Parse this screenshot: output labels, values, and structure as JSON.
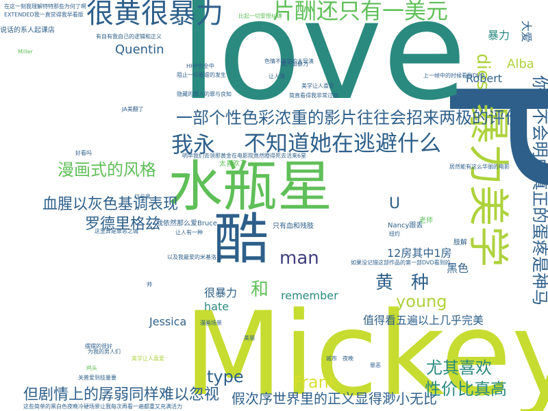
{
  "palette": {
    "navy": "#2e5f8a",
    "teal": "#2a8a7f",
    "green": "#5fbf58",
    "lime": "#aed23c",
    "yellow": "#d8df2c",
    "purple": "#3f3e7e"
  },
  "words": [
    {
      "text": "love",
      "color": "#2a8a7f"
    },
    {
      "text": "Mickey",
      "color": "#c6dc30"
    },
    {
      "text": "P",
      "color": "#2e5f8a"
    },
    {
      "text": "水瓶星",
      "color": "#5fbf58"
    },
    {
      "text": "酷",
      "color": "#2e5f8a"
    },
    {
      "text": "很黄很暴力",
      "color": "#2e5f8a"
    },
    {
      "text": "片酬还只有一美元",
      "color": "#5fbf58"
    },
    {
      "text": "暴力美学",
      "color": "#aed23c"
    },
    {
      "text": "一部个性色彩浓重的影片往往会招来两极的评价",
      "color": "#2e5f8a"
    },
    {
      "text": "不知道她在逃避什么",
      "color": "#2e5f8a"
    },
    {
      "text": "我永",
      "color": "#2e5f8a"
    },
    {
      "text": "漫画式的风格",
      "color": "#5fbf58"
    },
    {
      "text": "血腥以灰色基调表现",
      "color": "#2e5f8a"
    },
    {
      "text": "罗德里格兹",
      "color": "#2e5f8a"
    },
    {
      "text": "Quentin",
      "color": "#2e5f8a"
    },
    {
      "text": "dies",
      "color": "#aed23c"
    },
    {
      "text": "Alba",
      "color": "#aed23c"
    },
    {
      "text": "Robert",
      "color": "#2e5f8a"
    },
    {
      "text": "暴力",
      "color": "#2a8a7f"
    },
    {
      "text": "大爱",
      "color": "#2e5f8a"
    },
    {
      "text": "你就不会明白真正的蛋疼是神马",
      "color": "#2e5f8a"
    },
    {
      "text": "man",
      "color": "#3f3e7e"
    },
    {
      "text": "黄",
      "color": "#2e5f8a"
    },
    {
      "text": "种",
      "color": "#2e5f8a"
    },
    {
      "text": "和",
      "color": "#5fbf58"
    },
    {
      "text": "young",
      "color": "#aed23c"
    },
    {
      "text": "12房其中1房",
      "color": "#2e5f8a"
    },
    {
      "text": "黑色",
      "color": "#2e5f8a"
    },
    {
      "text": "值得看五遍以上几乎完美",
      "color": "#2e5f8a"
    },
    {
      "text": "很暴力",
      "color": "#2e5f8a"
    },
    {
      "text": "hate",
      "color": "#2a8a7f"
    },
    {
      "text": "remember",
      "color": "#2a8a7f"
    },
    {
      "text": "Jessica",
      "color": "#2e5f8a"
    },
    {
      "text": "type",
      "color": "#2e5f8a"
    },
    {
      "text": "Frank",
      "color": "#d8df2c"
    },
    {
      "text": "尤其喜欢",
      "color": "#2a8a7f"
    },
    {
      "text": "性价比真高",
      "color": "#2a8a7f"
    },
    {
      "text": "但剧情上的孱弱同样难以忽视",
      "color": "#2e5f8a"
    },
    {
      "text": "假次序世界里的正义显得渺小无比",
      "color": "#2e5f8a"
    },
    {
      "text": "U",
      "color": "#2e5f8a"
    },
    {
      "text": "只有血和残肢",
      "color": "#2e5f8a"
    },
    {
      "text": "我依然那么爱Bruce",
      "color": "#2e5f8a"
    },
    {
      "text": "Nancy跟丢",
      "color": "#2e5f8a"
    },
    {
      "text": "肢解",
      "color": "#2e5f8a"
    },
    {
      "text": "老师",
      "color": "#5fbf58"
    },
    {
      "text": "太喜欢了",
      "color": "#5fbf58"
    },
    {
      "text": "HHP也全中",
      "color": "#2e5f8a"
    },
    {
      "text": "JA美翻了",
      "color": "#2e5f8a"
    },
    {
      "text": "Miller",
      "color": "#5fbf58"
    },
    {
      "text": "美学让人喜爱",
      "color": "#aed23c"
    },
    {
      "text": "说话的系人起课店",
      "color": "#2e5f8a"
    },
    {
      "text": "隐藏的罪人的罪与良知",
      "color": "#2e5f8a"
    },
    {
      "text": "摆摆的很好",
      "color": "#2e5f8a"
    },
    {
      "text": "鸡头",
      "color": "#5fbf58"
    },
    {
      "text": "关普爱到技量要",
      "color": "#2e5f8a"
    },
    {
      "text": "让人有一种",
      "color": "#2e5f8a"
    },
    {
      "text": "这些简单的黑白色夜晚冷硬场景让我每次再看一遍都重又充满活力",
      "color": "#2e5f8a"
    },
    {
      "text": "比起一切爱恨纠缠",
      "color": "#5fbf58"
    },
    {
      "text": "阻止一切暴虐的发生",
      "color": "#2e5f8a"
    },
    {
      "text": "EXTENDED我一直觉得我早看版",
      "color": "#2e5f8a"
    },
    {
      "text": "在这一刻我理解特特那些为何了啊",
      "color": "#2e5f8a"
    },
    {
      "text": "有自有我自己的逻辑和正义",
      "color": "#2e5f8a"
    },
    {
      "text": "上一帧中的时候看到DVD",
      "color": "#2e5f8a"
    },
    {
      "text": "明早我们去领那黄金在电影院竟然瞪得死去活来6星",
      "color": "#2e5f8a"
    },
    {
      "text": "如果没记错这部作品的第一部DVD看到的",
      "color": "#2e5f8a"
    },
    {
      "text": "漫画场景",
      "color": "#2e5f8a"
    },
    {
      "text": "暴力加暴力",
      "color": "#2e5f8a"
    },
    {
      "text": "色情不清楚的大导演",
      "color": "#2e5f8a"
    },
    {
      "text": "居然能有这么华丽的电影",
      "color": "#2e5f8a"
    },
    {
      "text": "红与黑",
      "color": "#2e5f8a"
    },
    {
      "text": "以及我最爱的米基洛克",
      "color": "#2e5f8a"
    },
    {
      "text": "这里算是罪恶之城",
      "color": "#2e5f8a"
    },
    {
      "text": "让人爆",
      "color": "#2e5f8a"
    },
    {
      "text": "美学让人喜爱",
      "color": "#2e5f8a"
    },
    {
      "text": "简直看得我非常过瘾",
      "color": "#2e5f8a"
    },
    {
      "text": "好看吗",
      "color": "#2e5f8a"
    },
    {
      "text": "为我的男人们",
      "color": "#2e5f8a"
    },
    {
      "text": "纽约",
      "color": "#2e5f8a"
    },
    {
      "text": "美丽",
      "color": "#2e5f8a"
    },
    {
      "text": "夜晚",
      "color": "#2e5f8a"
    },
    {
      "text": "罪恶",
      "color": "#2e5f8a"
    },
    {
      "text": "城市",
      "color": "#2e5f8a"
    },
    {
      "text": "帅",
      "color": "#2e5f8a"
    }
  ]
}
